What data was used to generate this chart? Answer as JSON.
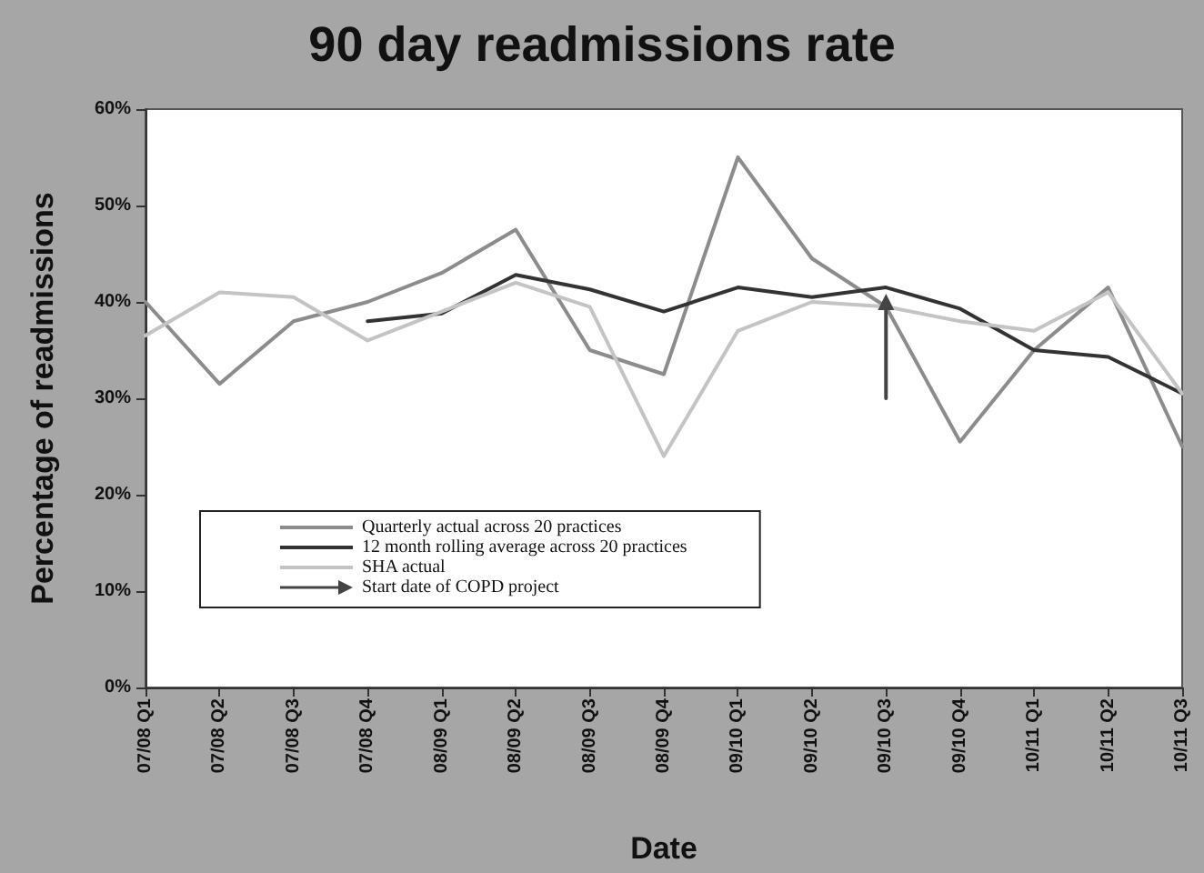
{
  "chart_data": {
    "type": "line",
    "title": "90 day readmissions rate",
    "xlabel": "Date",
    "ylabel": "Percentage of readmissions",
    "categories": [
      "07/08 Q1",
      "07/08 Q2",
      "07/08 Q3",
      "07/08 Q4",
      "08/09 Q1",
      "08/09 Q2",
      "08/09 Q3",
      "08/09 Q4",
      "09/10 Q1",
      "09/10 Q2",
      "09/10 Q3",
      "09/10 Q4",
      "10/11 Q1",
      "10/11 Q2",
      "10/11 Q3"
    ],
    "series": [
      {
        "name": "Quarterly actual across 20 practices",
        "color": "#8c8c8c",
        "values": [
          40,
          31.5,
          38,
          40,
          43,
          47.5,
          35,
          32.5,
          55,
          44.5,
          39.5,
          25.5,
          35,
          41.5,
          25
        ]
      },
      {
        "name": "12 month rolling average across 20 practices",
        "color": "#333333",
        "values": [
          null,
          null,
          null,
          38,
          38.8,
          42.8,
          41.3,
          39,
          41.5,
          40.5,
          41.5,
          39.3,
          35,
          34.3,
          30.5
        ]
      },
      {
        "name": "SHA actual",
        "color": "#c4c4c4",
        "values": [
          36.5,
          41,
          40.5,
          36,
          39,
          42,
          39.5,
          24,
          37,
          40,
          39.5,
          38,
          37,
          41,
          30.5
        ]
      },
      {
        "name": "Start date of COPD project",
        "color": "#444444",
        "x": [
          "09/10 Q3",
          "09/10 Q3"
        ],
        "values": [
          30,
          40
        ],
        "marker": "triangle"
      }
    ],
    "ylim": [
      0,
      60
    ],
    "yticks": [
      {
        "value": 0,
        "label": "0%"
      },
      {
        "value": 10,
        "label": "10%"
      },
      {
        "value": 20,
        "label": "20%"
      },
      {
        "value": 30,
        "label": "30%"
      },
      {
        "value": 40,
        "label": "40%"
      },
      {
        "value": 50,
        "label": "50%"
      },
      {
        "value": 60,
        "label": "60%"
      }
    ],
    "grid": false,
    "legend": "bottom left",
    "marker": "none",
    "line_style": "solid"
  }
}
